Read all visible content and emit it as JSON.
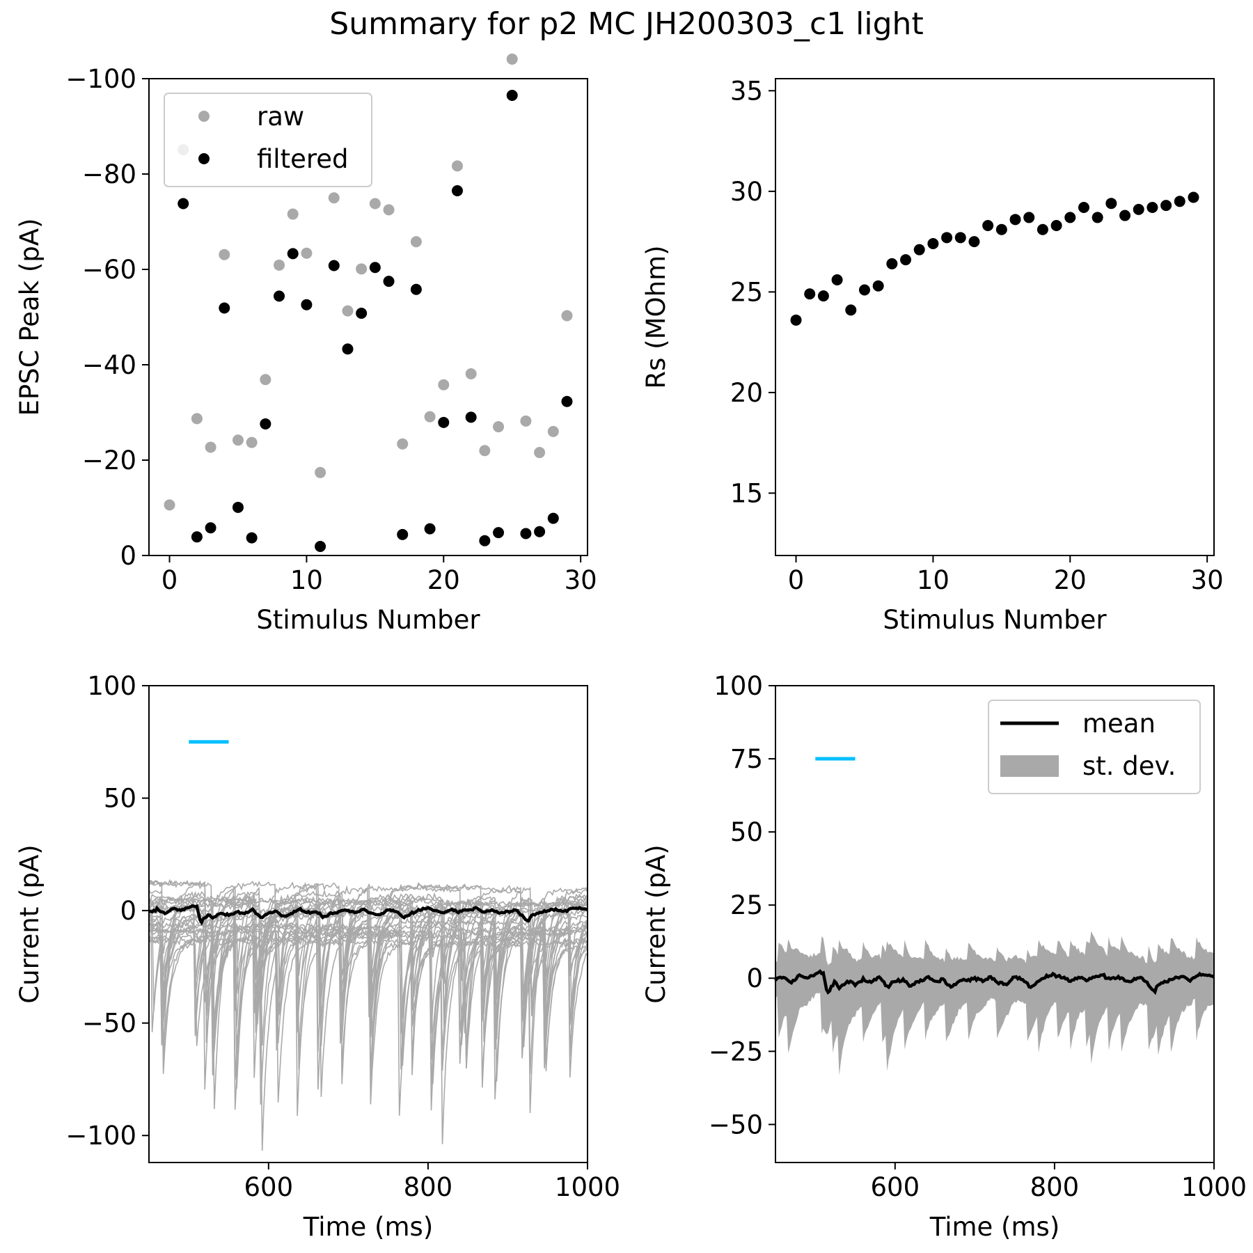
{
  "figure": {
    "title": "Summary for p2 MC JH200303_c1 light"
  },
  "chart_data": [
    {
      "type": "scatter",
      "panel": "top-left",
      "xlabel": "Stimulus Number",
      "ylabel": "EPSC Peak (pA)",
      "xlim": [
        -1.5,
        30.5
      ],
      "ylim": [
        0,
        -100
      ],
      "y_inverted": true,
      "xticks": [
        0,
        10,
        20,
        30
      ],
      "yticks": [
        0,
        -20,
        -40,
        -60,
        -80,
        -100
      ],
      "ytick_labels": [
        "0",
        "−20",
        "−40",
        "−60",
        "−80",
        "−100"
      ],
      "legend": {
        "position": "top-left",
        "entries": [
          "raw",
          "filtered"
        ]
      },
      "series": [
        {
          "name": "raw",
          "color": "#a9a9a9",
          "x": [
            0,
            1,
            2,
            3,
            4,
            5,
            6,
            7,
            8,
            9,
            10,
            11,
            12,
            13,
            14,
            15,
            16,
            17,
            18,
            19,
            20,
            21,
            22,
            23,
            24,
            25,
            26,
            27,
            28,
            29
          ],
          "y": [
            -10.6,
            -85.1,
            -28.7,
            -22.7,
            -63.1,
            -24.2,
            -23.7,
            -36.9,
            -60.9,
            -71.6,
            -63.4,
            -17.4,
            -75.0,
            -51.3,
            -60.1,
            -73.8,
            -72.5,
            -23.4,
            -65.8,
            -29.1,
            -35.8,
            -81.7,
            -38.1,
            -22.0,
            -27.0,
            -104.1,
            -28.2,
            -21.6,
            -26.0,
            -50.3
          ]
        },
        {
          "name": "filtered",
          "color": "#000000",
          "x": [
            0,
            1,
            2,
            3,
            4,
            5,
            6,
            7,
            8,
            9,
            10,
            11,
            12,
            13,
            14,
            15,
            16,
            17,
            18,
            19,
            20,
            21,
            22,
            23,
            24,
            25,
            26,
            27,
            28,
            29
          ],
          "y": [
            null,
            -73.8,
            -3.9,
            -5.8,
            -51.9,
            -10.1,
            -3.7,
            -27.6,
            -54.4,
            -63.3,
            -52.6,
            -1.9,
            -60.8,
            -43.3,
            -50.8,
            -60.4,
            -57.5,
            -4.4,
            -55.8,
            -5.6,
            -27.9,
            -76.5,
            -29.0,
            -3.1,
            -4.8,
            -96.5,
            -4.6,
            -5.0,
            -7.8,
            -32.3
          ]
        }
      ]
    },
    {
      "type": "scatter",
      "panel": "top-right",
      "xlabel": "Stimulus Number",
      "ylabel": "Rs (MOhm)",
      "xlim": [
        -1.5,
        30.5
      ],
      "ylim": [
        11.9,
        35.6
      ],
      "xticks": [
        0,
        10,
        20,
        30
      ],
      "yticks": [
        15,
        20,
        25,
        30,
        35
      ],
      "series": [
        {
          "color": "#000000",
          "x": [
            0,
            1,
            2,
            3,
            4,
            5,
            6,
            7,
            8,
            9,
            10,
            11,
            12,
            13,
            14,
            15,
            16,
            17,
            18,
            19,
            20,
            21,
            22,
            23,
            24,
            25,
            26,
            27,
            28,
            29
          ],
          "y": [
            23.6,
            24.9,
            24.8,
            25.6,
            24.1,
            25.1,
            25.3,
            26.4,
            26.6,
            27.1,
            27.4,
            27.7,
            27.7,
            27.5,
            28.3,
            28.1,
            28.6,
            28.7,
            28.1,
            28.3,
            28.7,
            29.2,
            28.7,
            29.4,
            28.8,
            29.1,
            29.2,
            29.3,
            29.5,
            29.7
          ]
        }
      ]
    },
    {
      "type": "line",
      "panel": "bottom-left",
      "xlabel": "Time (ms)",
      "ylabel": "Current (pA)",
      "xlim": [
        450,
        1000
      ],
      "ylim": [
        -112,
        100
      ],
      "xticks": [
        600,
        800,
        1000
      ],
      "yticks": [
        -100,
        -50,
        0,
        50,
        100
      ],
      "ytick_labels": [
        "−100",
        "−50",
        "0",
        "50",
        "100"
      ],
      "stimulus_bar": {
        "color": "#00bfff",
        "x": [
          500,
          550
        ],
        "y": 75
      },
      "traces": {
        "count": 30,
        "color": "#a9a9a9",
        "offset_range": [
          -25,
          25
        ]
      },
      "event_times": [
        454,
        466,
        508,
        521,
        530,
        559,
        583,
        590,
        611,
        637,
        663,
        691,
        727,
        765,
        780,
        803,
        819,
        840,
        845,
        868,
        884,
        918,
        929,
        946,
        978
      ],
      "mean": {
        "color": "#000000",
        "x": [
          450,
          460,
          470,
          480,
          490,
          500,
          505,
          510,
          515,
          520,
          525,
          530,
          540,
          550,
          560,
          570,
          580,
          590,
          600,
          610,
          620,
          630,
          640,
          650,
          660,
          670,
          680,
          690,
          700,
          710,
          720,
          730,
          740,
          750,
          760,
          770,
          780,
          790,
          800,
          810,
          820,
          830,
          840,
          850,
          860,
          870,
          880,
          890,
          900,
          910,
          920,
          925,
          930,
          940,
          950,
          960,
          970,
          980,
          990,
          1000
        ],
        "y": [
          -0.5,
          0.5,
          -1.5,
          1.0,
          0.0,
          1.5,
          2.0,
          1.8,
          -5.5,
          -3.0,
          -1.5,
          -3.5,
          -1.0,
          -2.0,
          -0.5,
          -1.5,
          0.5,
          -3.0,
          -1.0,
          -0.5,
          -2.5,
          -1.0,
          0.5,
          -1.0,
          -0.5,
          -3.0,
          -1.0,
          -0.5,
          0.0,
          -1.0,
          0.5,
          -1.5,
          -2.0,
          0.5,
          -0.5,
          -3.0,
          -1.0,
          0.5,
          1.0,
          0.0,
          -1.0,
          0.5,
          -0.5,
          0.5,
          1.0,
          -0.5,
          0.5,
          -1.0,
          -0.5,
          0.0,
          -3.0,
          -5.0,
          -2.0,
          -1.0,
          0.0,
          0.5,
          -0.5,
          1.0,
          1.2,
          0.5
        ]
      }
    },
    {
      "type": "area",
      "panel": "bottom-right",
      "xlabel": "Time (ms)",
      "ylabel": "Current (pA)",
      "xlim": [
        450,
        1000
      ],
      "ylim": [
        -63,
        100
      ],
      "xticks": [
        600,
        800,
        1000
      ],
      "yticks": [
        -50,
        -25,
        0,
        25,
        50,
        75,
        100
      ],
      "ytick_labels": [
        "−50",
        "−25",
        "0",
        "25",
        "50",
        "75",
        "100"
      ],
      "stimulus_bar": {
        "color": "#00bfff",
        "x": [
          500,
          550
        ],
        "y": 75
      },
      "legend": {
        "position": "top-right",
        "entries": [
          "mean",
          "st. dev."
        ]
      },
      "band_color": "#a9a9a9",
      "mean_ref": "bottom-left"
    }
  ],
  "legend_labels": {
    "raw": "raw",
    "filtered": "filtered",
    "mean": "mean",
    "stdev": "st. dev."
  }
}
